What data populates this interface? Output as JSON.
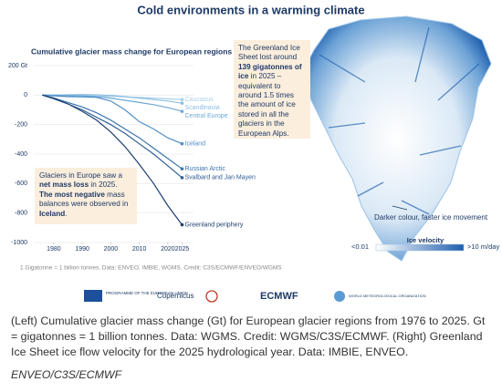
{
  "header": {
    "title": "Cold environments in a warming climate"
  },
  "chart_data": {
    "type": "line",
    "title": "Cumulative glacier mass change for European regions",
    "x": [
      1976,
      1980,
      1985,
      1990,
      1995,
      2000,
      2005,
      2010,
      2015,
      2020,
      2025
    ],
    "xlim": [
      1973,
      2029
    ],
    "xticks": [
      1980,
      1990,
      2000,
      2010,
      2020,
      2025
    ],
    "ylim": [
      -1000,
      200
    ],
    "yticks": [
      {
        "value": 200,
        "label": "200 Gt"
      },
      0,
      -200,
      -400,
      -600,
      -800,
      -1000
    ],
    "series": [
      {
        "name": "Caucasus",
        "color": "#a9d0ea",
        "values": [
          0,
          0,
          -2,
          -4,
          -6,
          -8,
          -12,
          -16,
          -20,
          -25,
          -30
        ]
      },
      {
        "name": "Scandinavia",
        "color": "#8cbfe2",
        "values": [
          0,
          1,
          2,
          4,
          2,
          -2,
          -10,
          -20,
          -30,
          -40,
          -55
        ]
      },
      {
        "name": "Central Europe",
        "color": "#6ea8d6",
        "values": [
          0,
          -1,
          -3,
          -5,
          -10,
          -20,
          -35,
          -50,
          -65,
          -85,
          -110
        ]
      },
      {
        "name": "Iceland",
        "color": "#4f8ec8",
        "values": [
          0,
          -5,
          -10,
          -12,
          -15,
          -40,
          -100,
          -180,
          -230,
          -290,
          -330
        ]
      },
      {
        "name": "Russian Arctic",
        "color": "#3b74b0",
        "values": [
          0,
          -20,
          -50,
          -80,
          -120,
          -170,
          -230,
          -290,
          -360,
          -430,
          -500
        ]
      },
      {
        "name": "Svalbard and Jan Mayen",
        "color": "#2d5e96",
        "values": [
          0,
          -25,
          -60,
          -100,
          -150,
          -200,
          -260,
          -330,
          -400,
          -480,
          -560
        ]
      },
      {
        "name": "Greenland periphery",
        "color": "#1d3f6e",
        "values": [
          0,
          -20,
          -60,
          -110,
          -170,
          -250,
          -350,
          -470,
          -600,
          -750,
          -880
        ]
      }
    ],
    "note": "1 Gigatonne = 1 billion tonnes. Data: ENVEO, IMBIE, WGMS. Credit: C3S/ECMWF/ENVEO/WGMS"
  },
  "annotations": {
    "europe": [
      {
        "text": "Glaciers in Europe saw a ",
        "bold": false
      },
      {
        "text": "net mass loss",
        "bold": true
      },
      {
        "text": " in 2025. ",
        "bold": false
      },
      {
        "text": "The most negative",
        "bold": true
      },
      {
        "text": " mass balances were observed in ",
        "bold": false
      },
      {
        "text": "Iceland",
        "bold": true
      },
      {
        "text": ".",
        "bold": false
      }
    ],
    "greenland": [
      {
        "text": "The Greenland Ice Sheet lost around ",
        "bold": false
      },
      {
        "text": "139 gigatonnes of ice",
        "bold": true
      },
      {
        "text": " in 2025 – equivalent to around 1.5 times the amount of ice stored in all the glaciers in the European Alps.",
        "bold": false
      }
    ],
    "velocity_note": "Darker colour, faster ice movement"
  },
  "legend": {
    "title": "Ice velocity",
    "min_label": "<0.01",
    "max_label": ">10 m/day",
    "colors": [
      "#ffffff",
      "#1f5fae"
    ]
  },
  "logos": [
    "PROGRAMME OF THE EUROPEAN UNION",
    "Copernicus",
    "ECMWF",
    "WORLD METEOROLOGICAL ORGANIZATION"
  ],
  "caption": "(Left) Cumulative glacier mass change (Gt) for European glacier regions from 1976 to 2025. Gt = gigatonnes = 1 billion tonnes. Data: WGMS. Credit: WGMS/C3S/ECMWF. (Right) Greenland Ice Sheet ice flow velocity for the 2025 hydrological year. Data: IMBIE, ENVEO.",
  "credit": "ENVEO/C3S/ECMWF"
}
